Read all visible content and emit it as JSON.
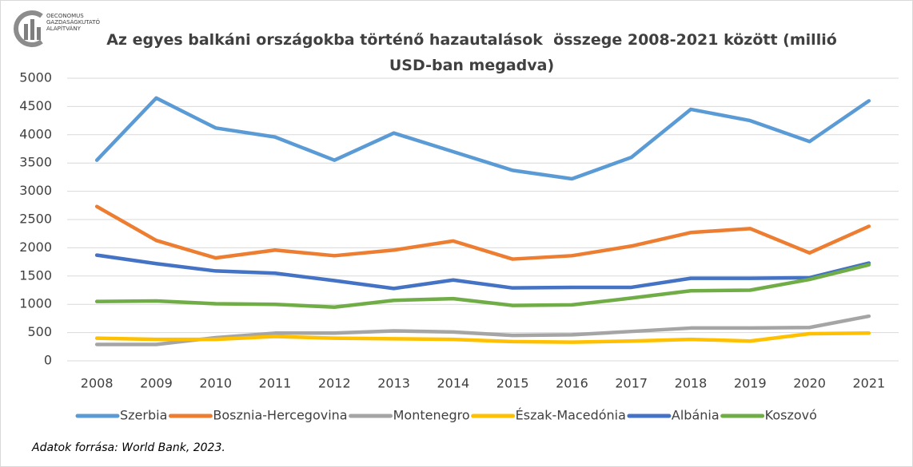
{
  "logo": {
    "lines": [
      "OECONOMUS",
      "GAZDASÁGKUTATÓ",
      "ALAPÍTVÁNY"
    ]
  },
  "chart_data": {
    "type": "line",
    "title": "Az egyes balkáni országokba történő hazautalások  összege 2008-2021 között (millió USD-ban megadva)",
    "categories": [
      "2008",
      "2009",
      "2010",
      "2011",
      "2012",
      "2013",
      "2014",
      "2015",
      "2016",
      "2017",
      "2018",
      "2019",
      "2020",
      "2021"
    ],
    "series": [
      {
        "name": "Szerbia",
        "color": "#5b9bd5",
        "values": [
          3550,
          4650,
          4120,
          3960,
          3550,
          4030,
          3700,
          3370,
          3220,
          3600,
          4450,
          4250,
          3880,
          4600
        ]
      },
      {
        "name": "Bosznia-Hercegovina",
        "color": "#ed7d31",
        "values": [
          2730,
          2130,
          1820,
          1960,
          1860,
          1960,
          2120,
          1800,
          1860,
          2030,
          2270,
          2340,
          1910,
          2380
        ]
      },
      {
        "name": "Montenegro",
        "color": "#a5a5a5",
        "values": [
          290,
          290,
          410,
          490,
          490,
          530,
          510,
          450,
          460,
          520,
          580,
          580,
          590,
          790
        ]
      },
      {
        "name": "Észak-Macedónia",
        "color": "#ffc000",
        "values": [
          400,
          380,
          380,
          430,
          400,
          390,
          380,
          340,
          330,
          350,
          380,
          350,
          480,
          490
        ]
      },
      {
        "name": "Albánia",
        "color": "#4472c4",
        "values": [
          1870,
          1720,
          1590,
          1550,
          1420,
          1280,
          1430,
          1290,
          1300,
          1300,
          1460,
          1460,
          1470,
          1730
        ]
      },
      {
        "name": "Koszovó",
        "color": "#70ad47",
        "values": [
          1050,
          1060,
          1010,
          1000,
          950,
          1070,
          1100,
          980,
          990,
          1110,
          1240,
          1250,
          1440,
          1700
        ]
      }
    ],
    "ylim": [
      0,
      5000
    ],
    "yticks": [
      0,
      500,
      1000,
      1500,
      2000,
      2500,
      3000,
      3500,
      4000,
      4500,
      5000
    ],
    "grid": true,
    "legend": "bottom",
    "source": "Adatok forrása: World Bank, 2023."
  }
}
